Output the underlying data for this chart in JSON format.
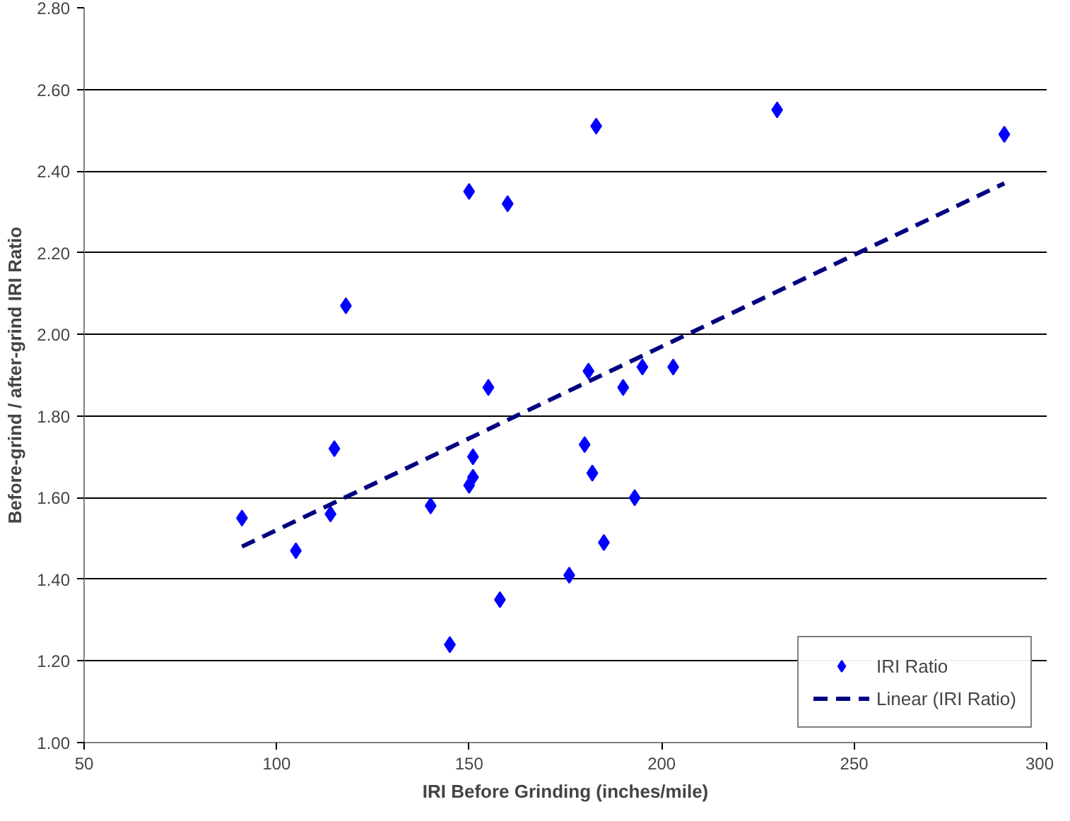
{
  "chart_data": {
    "type": "scatter",
    "xlabel": "IRI Before Grinding (inches/mile)",
    "ylabel": "Before-grind / after-grind IRI Ratio",
    "xlim": [
      50,
      300
    ],
    "xticks": [
      50,
      100,
      150,
      200,
      250,
      300
    ],
    "ylim": [
      1.0,
      2.8
    ],
    "yticks": [
      {
        "value": 1.0,
        "label": "1.00"
      },
      {
        "value": 1.2,
        "label": "1.20"
      },
      {
        "value": 1.4,
        "label": "1.40"
      },
      {
        "value": 1.6,
        "label": "1.60"
      },
      {
        "value": 1.8,
        "label": "1.80"
      },
      {
        "value": 2.0,
        "label": "2.00"
      },
      {
        "value": 2.2,
        "label": "2.20"
      },
      {
        "value": 2.4,
        "label": "2.40"
      },
      {
        "value": 2.6,
        "label": "2.60"
      },
      {
        "value": 2.8,
        "label": "2.80"
      }
    ],
    "grid": "y",
    "legend": "bottom right",
    "series": [
      {
        "name": "IRI Ratio",
        "marker": "diamond",
        "color": "#0000ff",
        "x": [
          91,
          105,
          114,
          115,
          118,
          140,
          145,
          150,
          150,
          151,
          151,
          155,
          158,
          160,
          176,
          180,
          181,
          182,
          183,
          185,
          190,
          193,
          195,
          203,
          230,
          289
        ],
        "values": [
          1.55,
          1.47,
          1.56,
          1.72,
          2.07,
          1.58,
          1.24,
          2.35,
          1.63,
          1.65,
          1.7,
          1.87,
          1.35,
          2.32,
          1.41,
          1.73,
          1.91,
          1.66,
          2.51,
          1.49,
          1.87,
          1.6,
          1.92,
          1.92,
          2.55,
          2.49
        ]
      },
      {
        "name": "Linear (IRI Ratio)",
        "type": "line",
        "line_style": "dashed",
        "color": "#000080",
        "x": [
          91,
          289
        ],
        "values": [
          1.48,
          2.37
        ]
      }
    ]
  }
}
